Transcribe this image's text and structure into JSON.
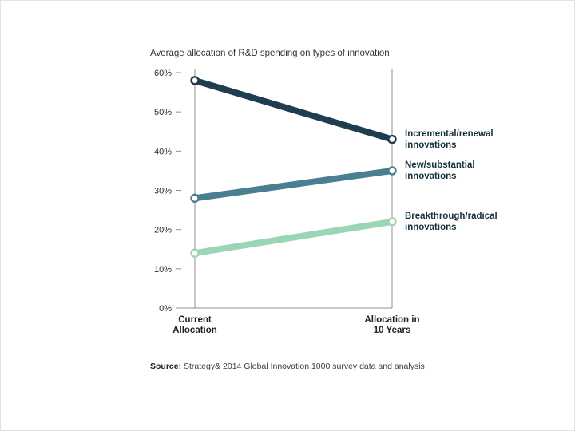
{
  "page": {
    "background": "#ffffff"
  },
  "source": {
    "label": "Source:",
    "text": " Strategy& 2014 Global Innovation 1000 survey data and analysis"
  },
  "chart_data": {
    "type": "line",
    "subtype": "slope",
    "title": "Average allocation of R&D spending on types of innovation",
    "categories": [
      "Current Allocation",
      "Allocation in 10 Years"
    ],
    "series": [
      {
        "name": "Incremental/renewal innovations",
        "values": [
          58,
          43
        ],
        "color": "#1e3d4f"
      },
      {
        "name": "New/substantial innovations",
        "values": [
          28,
          35
        ],
        "color": "#4a7e92"
      },
      {
        "name": "Breakthrough/radical innovations",
        "values": [
          14,
          22
        ],
        "color": "#9ad6b6"
      }
    ],
    "ylim": [
      0,
      60
    ],
    "ytick_step": 10,
    "ytick_suffix": "%",
    "grid": "vertical-category-lines",
    "legend_position": "right-of-last-point",
    "marker": "open-circle",
    "axis_color": "#8f8f8f",
    "tick_label_color": "#2b2b2b"
  }
}
